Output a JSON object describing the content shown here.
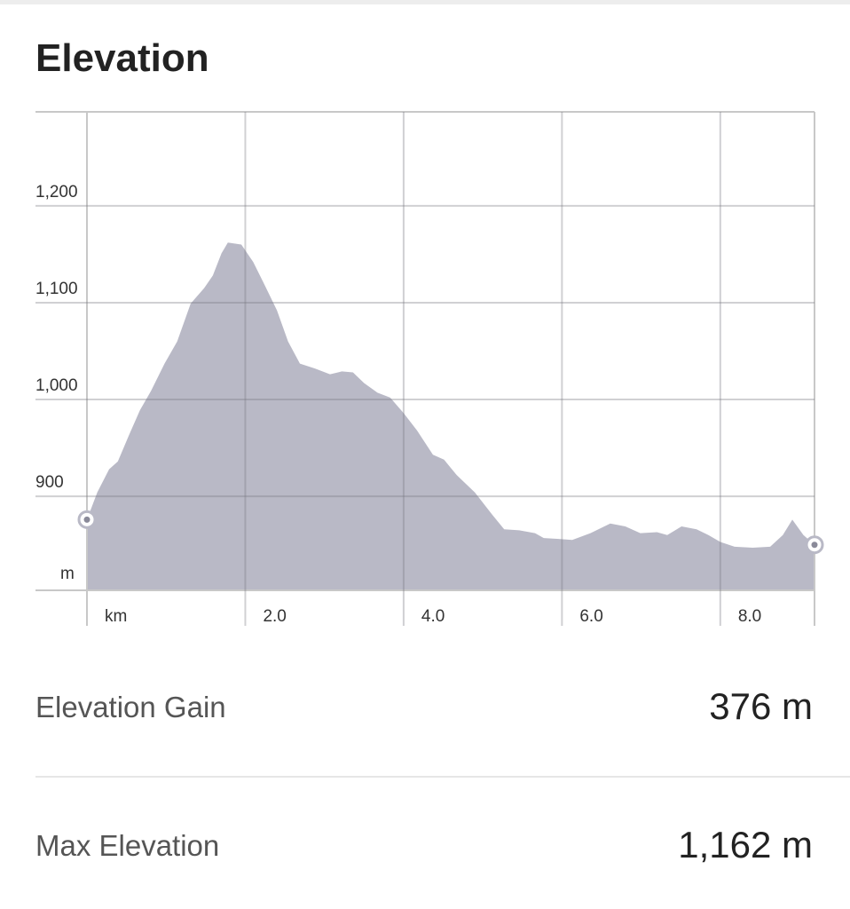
{
  "chart_data": {
    "type": "area",
    "title": "Elevation",
    "xlabel": "km",
    "ylabel": "m",
    "x": [
      0,
      0.13,
      0.28,
      0.39,
      0.53,
      0.67,
      0.81,
      0.98,
      1.14,
      1.31,
      1.48,
      1.59,
      1.7,
      1.78,
      1.95,
      2.1,
      2.24,
      2.4,
      2.54,
      2.69,
      2.88,
      3.07,
      3.22,
      3.36,
      3.5,
      3.67,
      3.83,
      4.0,
      4.17,
      4.37,
      4.51,
      4.67,
      4.9,
      5.12,
      5.27,
      5.46,
      5.66,
      5.77,
      5.96,
      6.13,
      6.36,
      6.61,
      6.8,
      6.99,
      7.2,
      7.33,
      7.51,
      7.7,
      7.85,
      8.0,
      8.18,
      8.41,
      8.63,
      8.79,
      8.91,
      9.05,
      9.19
    ],
    "values": [
      876,
      904,
      928,
      936,
      963,
      989,
      1009,
      1037,
      1060,
      1099,
      1115,
      1128,
      1151,
      1162,
      1160,
      1142,
      1119,
      1092,
      1060,
      1037,
      1032,
      1026,
      1029,
      1028,
      1017,
      1007,
      1002,
      986,
      968,
      943,
      938,
      922,
      904,
      881,
      866,
      865,
      862,
      857,
      856,
      855,
      862,
      872,
      869,
      862,
      863,
      860,
      869,
      866,
      860,
      853,
      848,
      847,
      848,
      860,
      876,
      860,
      850
    ],
    "color": "#b9b9c6",
    "grid": true,
    "xlim": [
      0,
      9.19
    ],
    "ylim": [
      803,
      1297
    ],
    "xticks": [
      {
        "value": 2,
        "label": "2.0"
      },
      {
        "value": 4,
        "label": "4.0"
      },
      {
        "value": 6,
        "label": "6.0"
      },
      {
        "value": 8,
        "label": "8.0"
      }
    ],
    "yticks": [
      900,
      {
        "value": 1000,
        "label": "1,000"
      },
      {
        "value": 1100,
        "label": "1,100"
      },
      {
        "value": 1200,
        "label": "1,200"
      }
    ]
  },
  "stats": [
    {
      "label": "Elevation Gain",
      "value": "376 m"
    },
    {
      "label": "Max Elevation",
      "value": "1,162 m"
    }
  ]
}
